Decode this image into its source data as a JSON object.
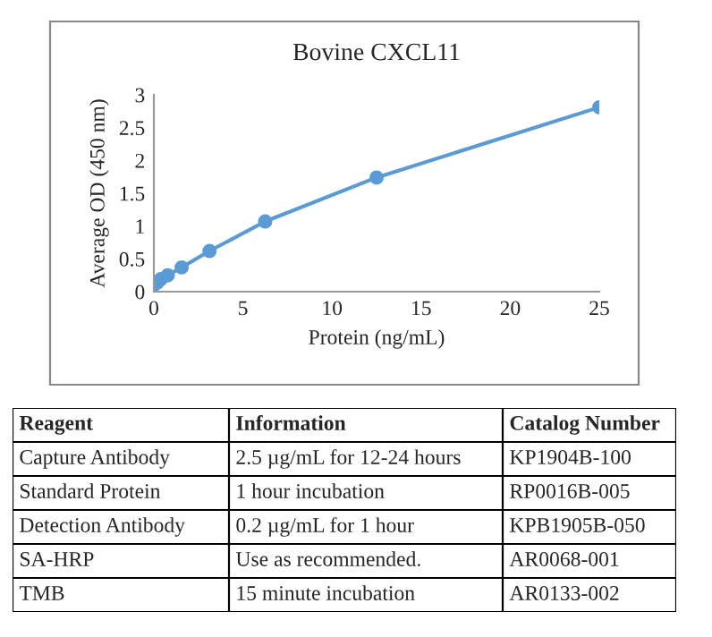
{
  "chart_data": [
    {
      "type": "line",
      "title": "Bovine CXCL11",
      "xlabel": "Protein (ng/mL)",
      "ylabel": "Average OD (450 nm)",
      "x": [
        0,
        0.195,
        0.39,
        0.78,
        1.56,
        3.125,
        6.25,
        12.5,
        25
      ],
      "series": [
        {
          "color": "#5b9bd5",
          "values": [
            0.1,
            0.14,
            0.19,
            0.25,
            0.37,
            0.62,
            1.07,
            1.74,
            2.81
          ]
        }
      ],
      "xlim": [
        0,
        25
      ],
      "xticks": [
        0,
        5,
        10,
        15,
        20,
        25
      ],
      "ylim": [
        0,
        3
      ],
      "yticks": [
        0,
        0.5,
        1,
        1.5,
        2,
        2.5,
        3
      ],
      "marker": "circle",
      "line_style": "solid"
    },
    {
      "type": "other",
      "annotations": [
        "Reagent",
        "Information",
        "Catalog Number",
        "Capture Antibody",
        "2.5 µg/mL for 12-24 hours",
        "KP1904B-100",
        "Standard Protein",
        "1 hour incubation",
        "RP0016B-005",
        "Detection Antibody",
        "0.2 µg/mL for 1 hour",
        "KPB1905B-050",
        "SA-HRP",
        "Use as recommended.",
        "AR0068-001",
        "TMB",
        "15 minute incubation",
        "AR0133-002"
      ]
    }
  ]
}
